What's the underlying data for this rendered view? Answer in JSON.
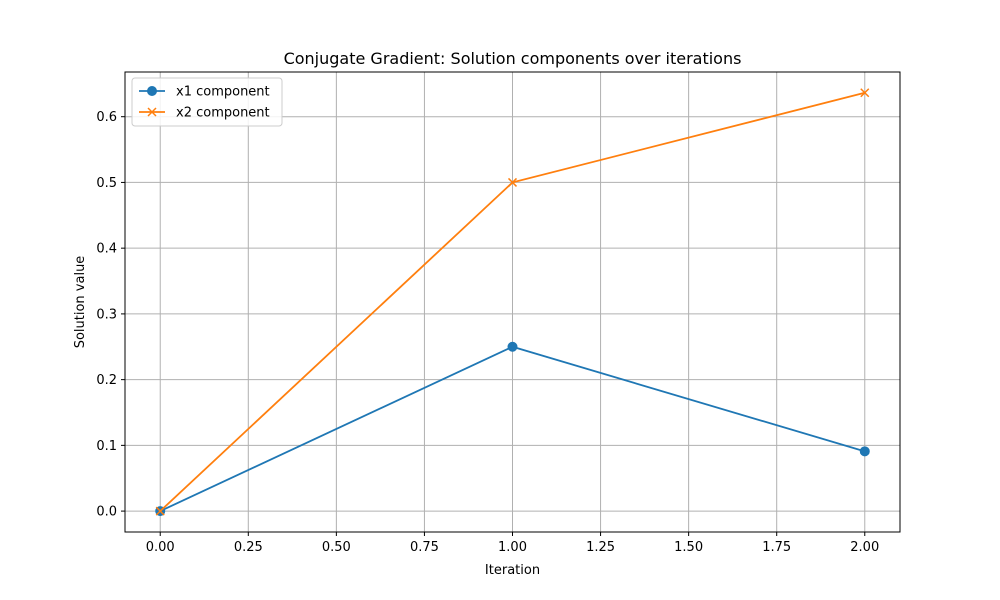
{
  "chart_data": {
    "type": "line",
    "title": "Conjugate Gradient: Solution components over iterations",
    "xlabel": "Iteration",
    "ylabel": "Solution value",
    "xlim": [
      -0.1,
      2.1
    ],
    "ylim": [
      -0.0318,
      0.668
    ],
    "xticks": [
      0.0,
      0.25,
      0.5,
      0.75,
      1.0,
      1.25,
      1.5,
      1.75,
      2.0
    ],
    "xtick_labels": [
      "0.00",
      "0.25",
      "0.50",
      "0.75",
      "1.00",
      "1.25",
      "1.50",
      "1.75",
      "2.00"
    ],
    "yticks": [
      0.0,
      0.1,
      0.2,
      0.3,
      0.4,
      0.5,
      0.6
    ],
    "ytick_labels": [
      "0.0",
      "0.1",
      "0.2",
      "0.3",
      "0.4",
      "0.5",
      "0.6"
    ],
    "grid": true,
    "legend_position": "top-left",
    "x": [
      0,
      1,
      2
    ],
    "series": [
      {
        "name": "x1 component",
        "values": [
          0.0,
          0.25,
          0.0909
        ],
        "color": "#1f77b4",
        "marker": "circle"
      },
      {
        "name": "x2 component",
        "values": [
          0.0,
          0.5,
          0.6364
        ],
        "color": "#ff7f0e",
        "marker": "x"
      }
    ]
  }
}
